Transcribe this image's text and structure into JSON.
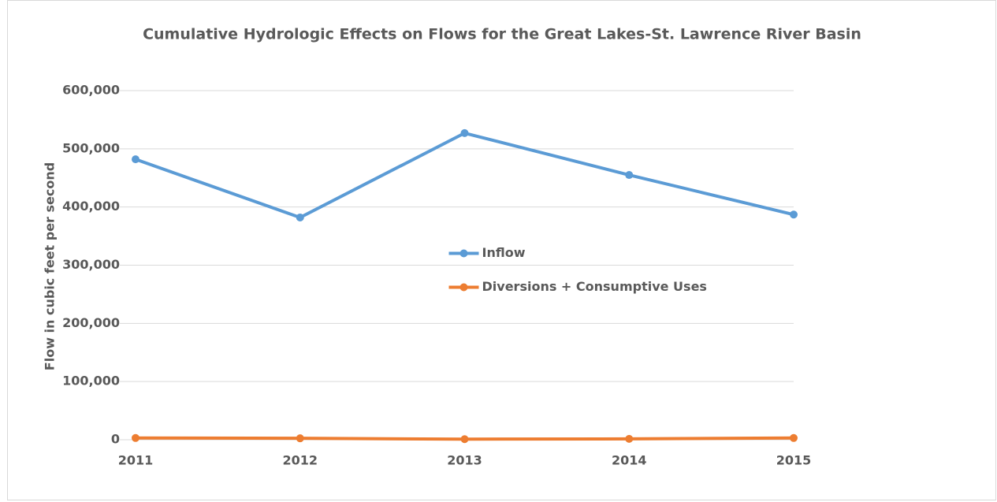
{
  "chart_data": {
    "type": "line",
    "title": "Cumulative Hydrologic Effects on Flows for the Great Lakes-St. Lawrence River Basin",
    "y_label": "Flow in cubic feet per second",
    "categories": [
      "2011",
      "2012",
      "2013",
      "2014",
      "2015"
    ],
    "series": [
      {
        "name": "Inflow",
        "color": "#5b9bd5",
        "values": [
          482000,
          382000,
          527000,
          455000,
          387000
        ]
      },
      {
        "name": "Diversions + Consumptive Uses",
        "color": "#ed7d31",
        "values": [
          3000,
          2500,
          1000,
          1500,
          3000
        ]
      }
    ],
    "ylim": [
      0,
      600000
    ],
    "yticks": [
      0,
      {
        "value": 100000,
        "label": "100,000"
      },
      {
        "value": 200000,
        "label": "200,000"
      },
      {
        "value": 300000,
        "label": "300,000"
      },
      {
        "value": 400000,
        "label": "400,000"
      },
      {
        "value": 500000,
        "label": "500,000"
      },
      {
        "value": 600000,
        "label": "600,000"
      }
    ],
    "grid": true,
    "legend": "center"
  }
}
